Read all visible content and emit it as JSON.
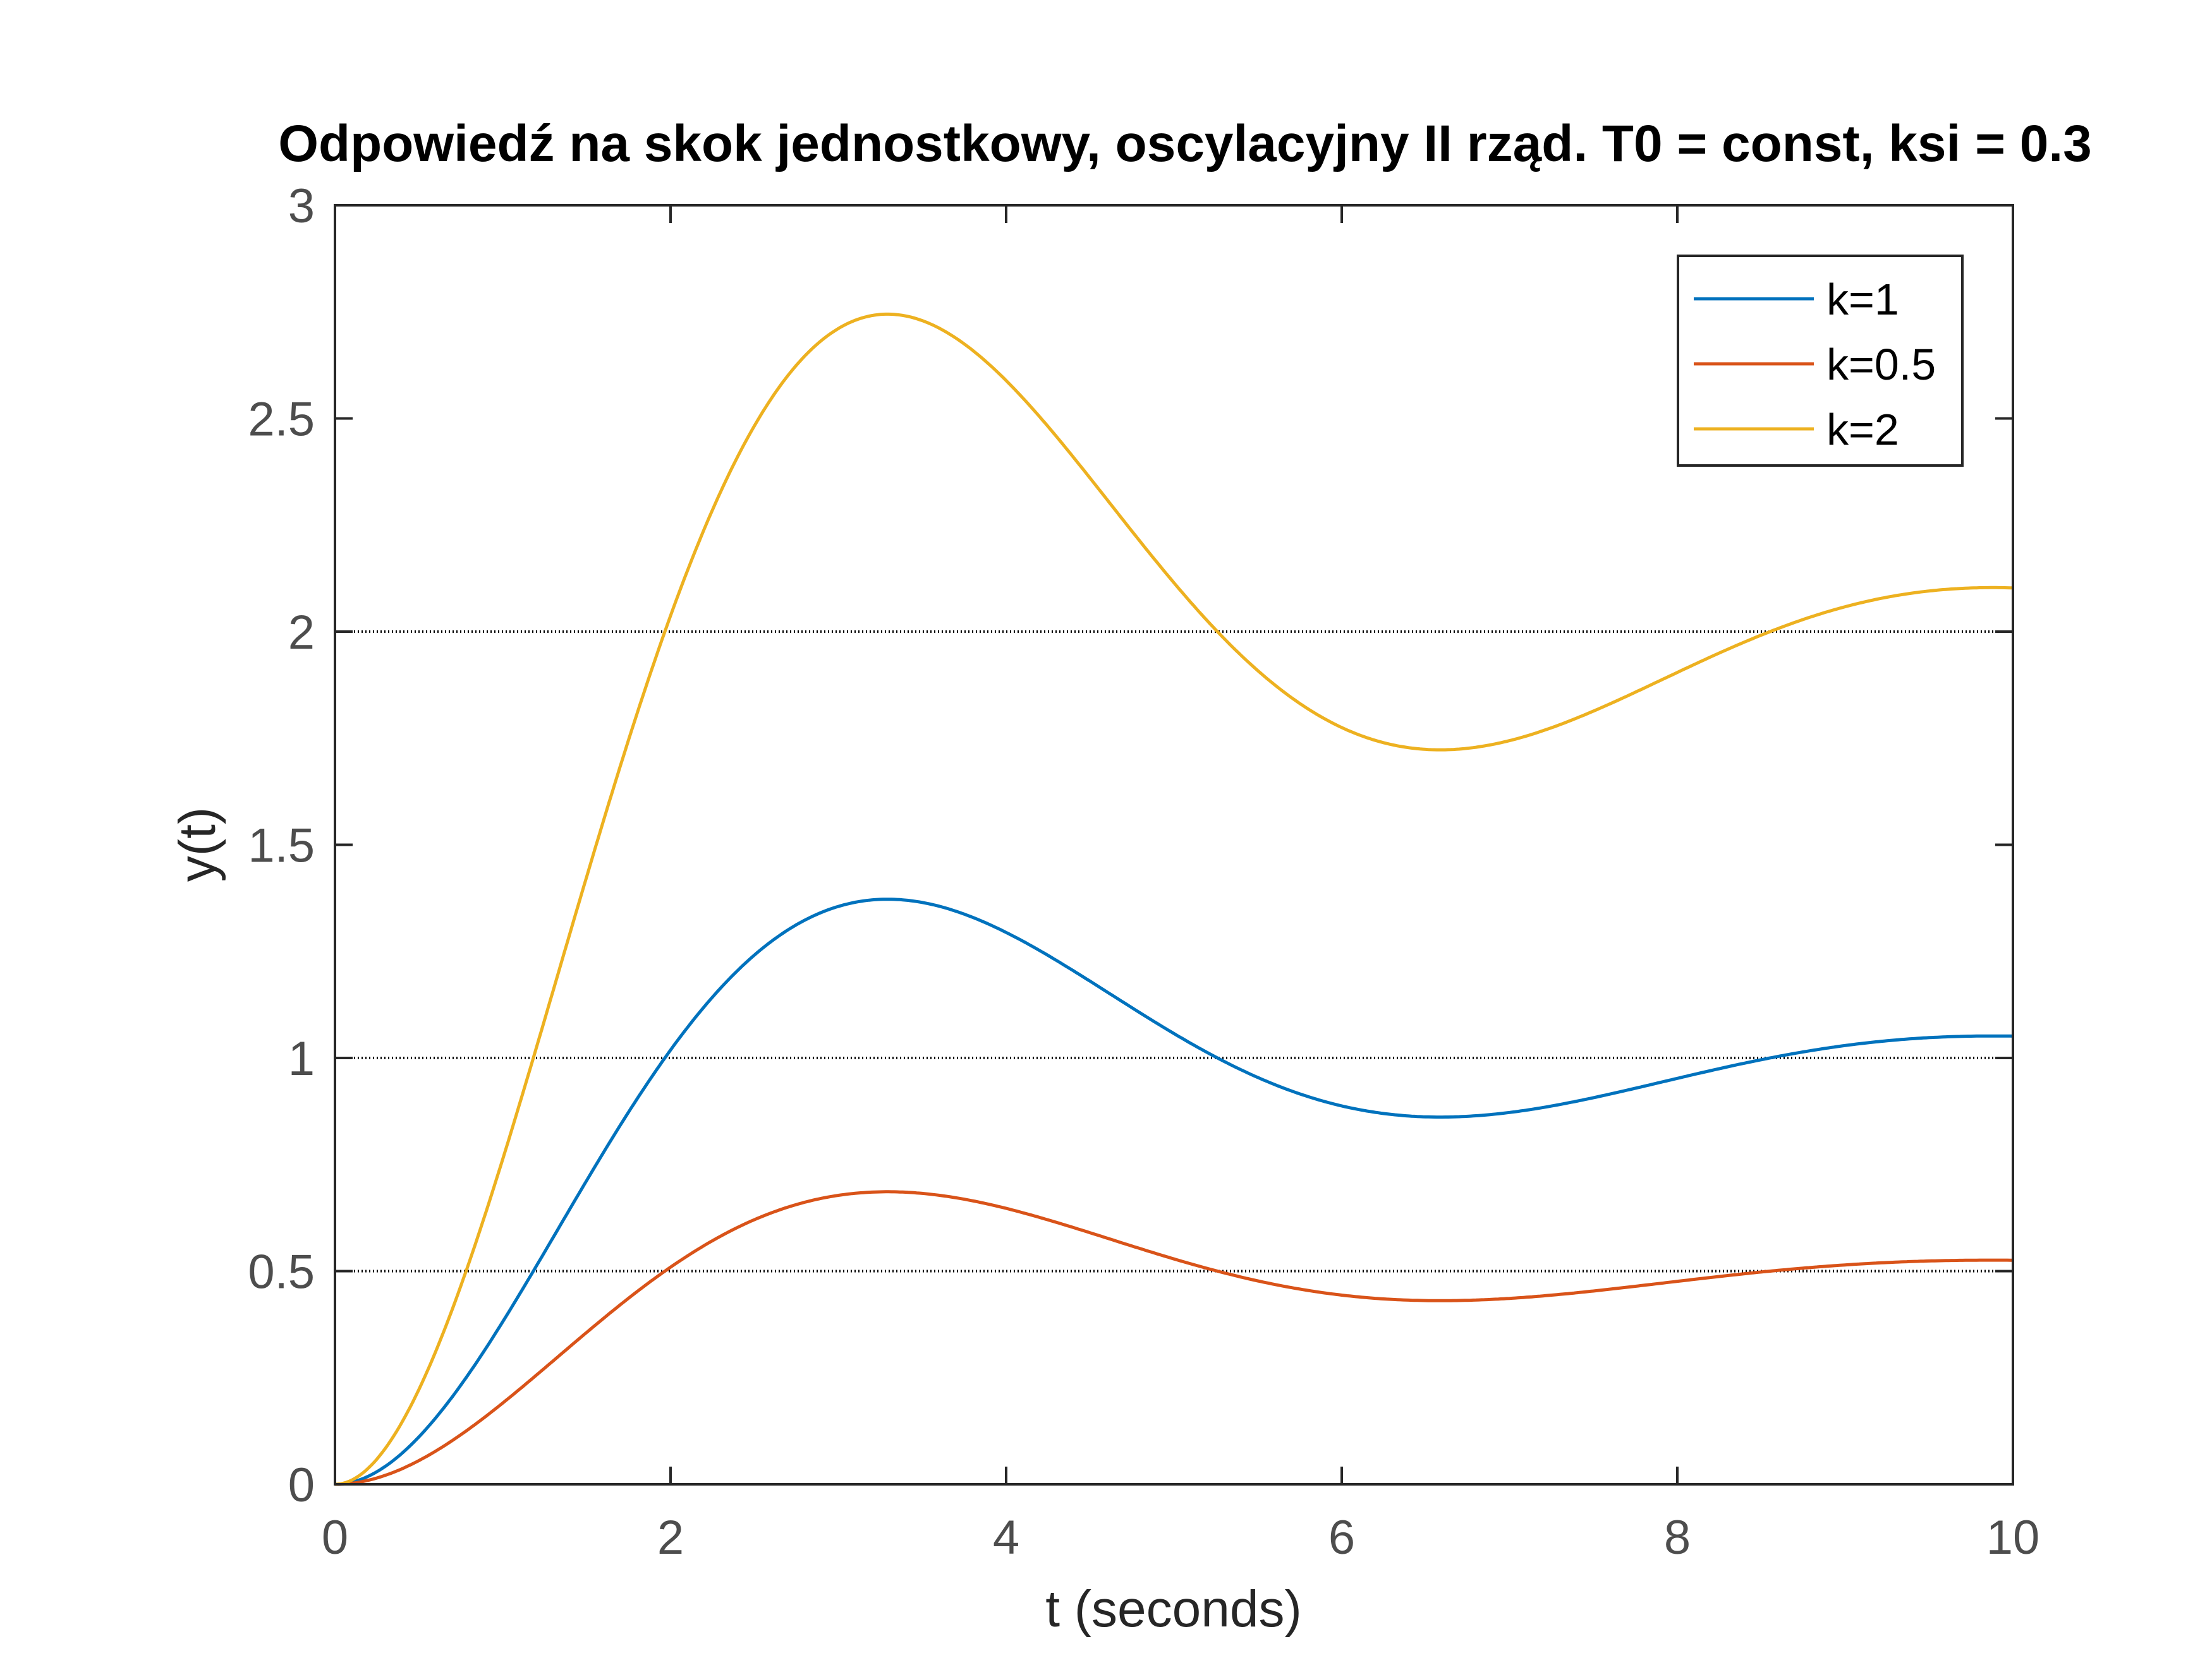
{
  "chart_data": {
    "type": "line",
    "title": "Odpowiedź na skok jednostkowy, oscylacyjny II rząd. T0 = const, ksi = 0.3",
    "xlabel": "t (seconds)",
    "ylabel": "y(t)",
    "xlim": [
      0,
      10
    ],
    "ylim": [
      0,
      3
    ],
    "xticks": [
      "0",
      "2",
      "4",
      "6",
      "8",
      "10"
    ],
    "yticks": [
      "0",
      "0.5",
      "1",
      "1.5",
      "2",
      "2.5",
      "3"
    ],
    "reference_lines": [
      0.5,
      1,
      2
    ],
    "grid": false,
    "legend_position": "top-right",
    "model": {
      "zeta": 0.3,
      "omega_n": 1.0
    },
    "series": [
      {
        "name": "k=1",
        "gain": 1,
        "color": "#0072bd",
        "points": [
          [
            0,
            0
          ],
          [
            1,
            0.41
          ],
          [
            2,
            1.03
          ],
          [
            3.3,
            1.37
          ],
          [
            5,
            1.05
          ],
          [
            6.6,
            0.865
          ],
          [
            8,
            0.95
          ],
          [
            10,
            1.05
          ]
        ]
      },
      {
        "name": "k=0.5",
        "gain": 0.5,
        "color": "#d95319",
        "points": [
          [
            0,
            0
          ],
          [
            1,
            0.21
          ],
          [
            2,
            0.52
          ],
          [
            3.3,
            0.685
          ],
          [
            5,
            0.525
          ],
          [
            6.6,
            0.43
          ],
          [
            8,
            0.475
          ],
          [
            10,
            0.525
          ]
        ]
      },
      {
        "name": "k=2",
        "gain": 2,
        "color": "#edb120",
        "points": [
          [
            0,
            0
          ],
          [
            1,
            0.82
          ],
          [
            2,
            2.06
          ],
          [
            3.3,
            2.74
          ],
          [
            5,
            2.1
          ],
          [
            6.6,
            1.72
          ],
          [
            8,
            1.9
          ],
          [
            10,
            2.1
          ]
        ]
      }
    ]
  }
}
